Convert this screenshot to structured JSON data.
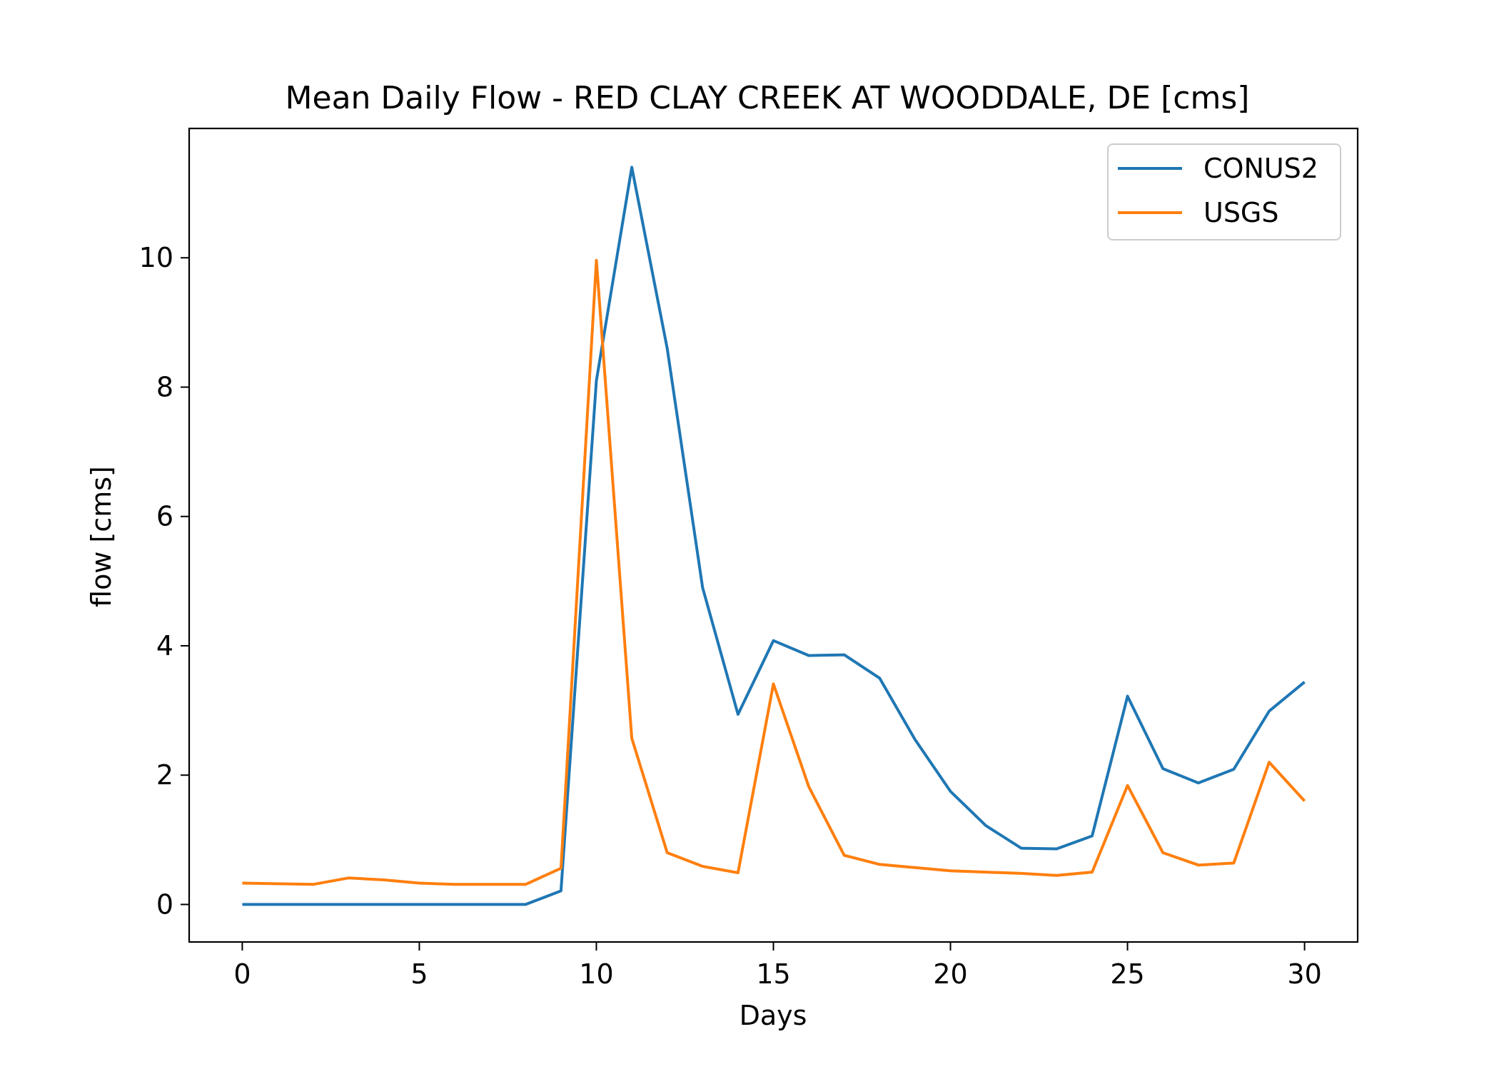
{
  "chart_data": {
    "type": "line",
    "title": "Mean Daily Flow - RED CLAY CREEK AT WOODDALE, DE [cms]",
    "xlabel": "Days",
    "ylabel": "flow [cms]",
    "xlim": [
      -1.5,
      31.5
    ],
    "ylim": [
      -0.58,
      12.0
    ],
    "xticks": [
      0,
      5,
      10,
      15,
      20,
      25,
      30
    ],
    "yticks": [
      0,
      2,
      4,
      6,
      8,
      10
    ],
    "grid": false,
    "legend_position": "top-right",
    "x": [
      0,
      1,
      2,
      3,
      4,
      5,
      6,
      7,
      8,
      9,
      10,
      11,
      12,
      13,
      14,
      15,
      16,
      17,
      18,
      19,
      20,
      21,
      22,
      23,
      24,
      25,
      26,
      27,
      28,
      29,
      30
    ],
    "series": [
      {
        "name": "CONUS2",
        "color": "#1f77b4",
        "values": [
          0.0,
          0.0,
          0.0,
          0.0,
          0.0,
          0.0,
          0.0,
          0.0,
          0.0,
          0.21,
          8.1,
          11.4,
          8.6,
          4.9,
          2.94,
          4.08,
          3.85,
          3.86,
          3.5,
          2.55,
          1.75,
          1.22,
          0.87,
          0.86,
          1.06,
          3.22,
          2.1,
          1.88,
          2.09,
          2.99,
          3.44
        ]
      },
      {
        "name": "USGS",
        "color": "#ff7f0e",
        "values": [
          0.33,
          0.32,
          0.31,
          0.41,
          0.38,
          0.33,
          0.31,
          0.31,
          0.31,
          0.56,
          9.96,
          2.57,
          0.8,
          0.59,
          0.49,
          3.41,
          1.82,
          0.76,
          0.62,
          0.57,
          0.52,
          0.5,
          0.48,
          0.45,
          0.5,
          1.84,
          0.8,
          0.61,
          0.64,
          2.2,
          1.6
        ]
      }
    ]
  }
}
